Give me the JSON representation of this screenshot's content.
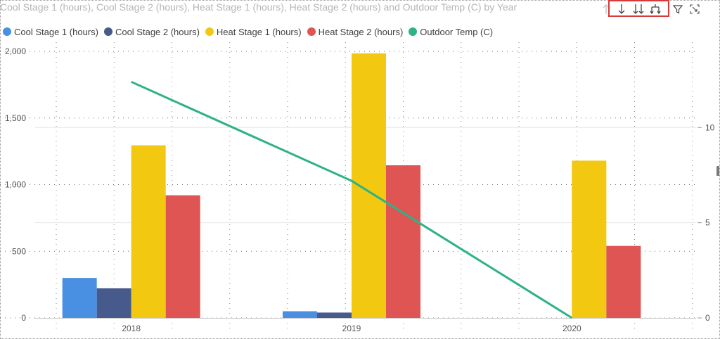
{
  "title": "Cool Stage 1 (hours), Cool Stage 2 (hours), Heat Stage 1 (hours), Heat Stage 2 (hours) and Outdoor Temp (C) by Year",
  "toolbar": {
    "icons": [
      "sort-ascending-icon",
      "drill-down-icon",
      "expand-all-icon",
      "expand-hierarchy-icon",
      "filter-icon",
      "focus-mode-icon"
    ]
  },
  "legend": {
    "items": [
      {
        "label": "Cool Stage 1 (hours)",
        "color": "#4a90e2"
      },
      {
        "label": "Cool Stage 2 (hours)",
        "color": "#475a8c"
      },
      {
        "label": "Heat Stage 1 (hours)",
        "color": "#f2c811"
      },
      {
        "label": "Heat Stage 2 (hours)",
        "color": "#de5553"
      },
      {
        "label": "Outdoor Temp (C)",
        "color": "#2eb383"
      }
    ]
  },
  "chart_data": {
    "type": "bar",
    "categories": [
      "2018",
      "2019",
      "2020"
    ],
    "series": [
      {
        "name": "Cool Stage 1 (hours)",
        "values": [
          300,
          50,
          0
        ],
        "color": "#4a90e2"
      },
      {
        "name": "Cool Stage 2 (hours)",
        "values": [
          222,
          40,
          0
        ],
        "color": "#475a8c"
      },
      {
        "name": "Heat Stage 1 (hours)",
        "values": [
          1295,
          1985,
          1180
        ],
        "color": "#f2c811"
      },
      {
        "name": "Heat Stage 2 (hours)",
        "values": [
          920,
          1145,
          540
        ],
        "color": "#de5553"
      }
    ],
    "line_series": {
      "name": "Outdoor Temp (C)",
      "values": [
        12.4,
        7.2,
        0
      ],
      "color": "#2eb383",
      "axis": "right"
    },
    "ylim": [
      0,
      2000
    ],
    "y_ticks": [
      0,
      500,
      1000,
      1500,
      2000
    ],
    "y_tick_labels": [
      "0",
      "500",
      "1,000",
      "1,500",
      "2,000"
    ],
    "y2lim": [
      0,
      14
    ],
    "y2_ticks": [
      0,
      5,
      10
    ],
    "y2_tick_labels": [
      "0",
      "5",
      "10"
    ],
    "grid": true,
    "legend_position": "top-left"
  }
}
